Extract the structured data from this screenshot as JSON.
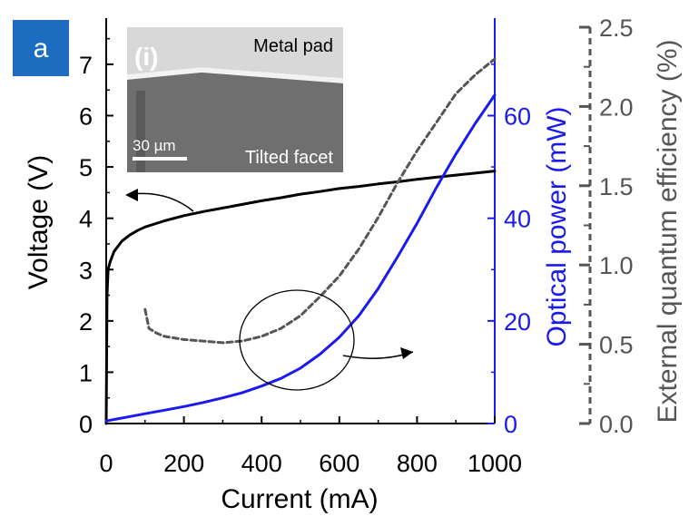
{
  "panel_label": "a",
  "inset": {
    "label": "(i)",
    "top_text": "Metal pad",
    "bottom_text": "Tilted facet",
    "scalebar_text": "30 µm"
  },
  "colors": {
    "voltage": "#000000",
    "power": "#1a1aee",
    "efficiency": "#555555",
    "panel_badge": "#1c6cc0"
  },
  "chart_data": {
    "type": "line",
    "xlabel": "Current (mA)",
    "xlim": [
      0,
      1000
    ],
    "x_ticks": [
      "0",
      "200",
      "400",
      "600",
      "800",
      "1000"
    ],
    "x_tick_values": [
      0,
      200,
      400,
      600,
      800,
      1000
    ],
    "axes": {
      "voltage": {
        "label": "Voltage (V)",
        "ylim": [
          0,
          7.9
        ],
        "ticks": [
          "0",
          "1",
          "2",
          "3",
          "4",
          "5",
          "6",
          "7"
        ],
        "tick_values": [
          0,
          1,
          2,
          3,
          4,
          5,
          6,
          7
        ]
      },
      "power": {
        "label": "Optical power (mW)",
        "ylim": [
          0,
          79
        ],
        "ticks": [
          "0",
          "20",
          "40",
          "60"
        ],
        "tick_values": [
          0,
          20,
          40,
          60
        ]
      },
      "efficiency": {
        "label": "External quantum efficiency (%)",
        "ylim": [
          0,
          2.5
        ],
        "ticks": [
          "0.0",
          "0.5",
          "1.0",
          "1.5",
          "2.0",
          "2.5"
        ],
        "tick_values": [
          0,
          0.5,
          1.0,
          1.5,
          2.0,
          2.5
        ]
      }
    },
    "series": [
      {
        "name": "Voltage",
        "axis": "voltage",
        "style": "solid",
        "x": [
          0,
          2,
          5,
          10,
          20,
          40,
          60,
          80,
          100,
          150,
          200,
          250,
          300,
          350,
          400,
          450,
          500,
          550,
          600,
          650,
          700,
          750,
          800,
          850,
          900,
          950,
          1000
        ],
        "y": [
          0.0,
          2.5,
          3.0,
          3.15,
          3.35,
          3.55,
          3.67,
          3.76,
          3.83,
          3.95,
          4.05,
          4.13,
          4.2,
          4.27,
          4.34,
          4.4,
          4.47,
          4.52,
          4.58,
          4.62,
          4.67,
          4.71,
          4.76,
          4.8,
          4.84,
          4.88,
          4.92
        ]
      },
      {
        "name": "Optical power",
        "axis": "power",
        "style": "solid",
        "x": [
          0,
          50,
          100,
          150,
          200,
          250,
          300,
          350,
          400,
          450,
          500,
          550,
          600,
          650,
          700,
          750,
          800,
          850,
          900,
          950,
          1000
        ],
        "y": [
          0.5,
          1.2,
          1.9,
          2.6,
          3.3,
          4.1,
          5.0,
          6.0,
          7.3,
          8.8,
          10.8,
          13.5,
          16.8,
          21.0,
          26.3,
          32.5,
          39.0,
          46.0,
          52.5,
          58.5,
          64.0
        ]
      },
      {
        "name": "External quantum efficiency",
        "axis": "efficiency",
        "style": "dashed",
        "x": [
          100,
          110,
          130,
          150,
          200,
          250,
          300,
          350,
          400,
          450,
          500,
          550,
          600,
          650,
          700,
          750,
          800,
          850,
          900,
          950,
          1000
        ],
        "y": [
          0.72,
          0.6,
          0.57,
          0.55,
          0.53,
          0.52,
          0.51,
          0.52,
          0.55,
          0.6,
          0.68,
          0.8,
          0.93,
          1.1,
          1.3,
          1.52,
          1.72,
          1.9,
          2.08,
          2.2,
          2.3
        ]
      }
    ]
  }
}
